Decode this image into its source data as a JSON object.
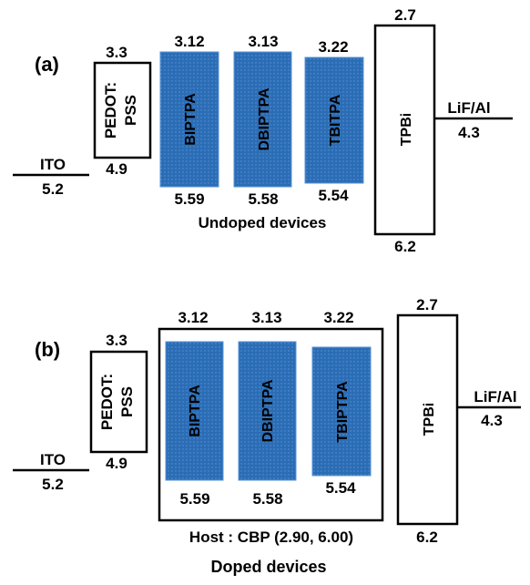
{
  "colors": {
    "layer_fill": "#2b6db5",
    "layer_dots": "#5a93d6",
    "outline": "#000000"
  },
  "panel_a": {
    "label": "(a)",
    "caption": "Undoped devices",
    "ito": {
      "name": "ITO",
      "value": "5.2"
    },
    "pedot": {
      "name_line1": "PEDOT:",
      "name_line2": "PSS",
      "lumo": "3.3",
      "homo": "4.9"
    },
    "bip": {
      "name": "BIPTPA",
      "lumo": "3.12",
      "homo": "5.59"
    },
    "dbip": {
      "name": "DBIPTPA",
      "lumo": "3.13",
      "homo": "5.58"
    },
    "tbi": {
      "name": "TBITPA",
      "lumo": "3.22",
      "homo": "5.54"
    },
    "tpbi": {
      "name": "TPBi",
      "lumo": "2.7",
      "homo": "6.2"
    },
    "lif": {
      "name": "LiF/Al",
      "value": "4.3"
    }
  },
  "panel_b": {
    "label": "(b)",
    "caption": "Doped devices",
    "host": "Host : CBP (2.90, 6.00)",
    "ito": {
      "name": "ITO",
      "value": "5.2"
    },
    "pedot": {
      "name_line1": "PEDOT:",
      "name_line2": "PSS",
      "lumo": "3.3",
      "homo": "4.9"
    },
    "bip": {
      "name": "BIPTPA",
      "lumo": "3.12",
      "homo": "5.59"
    },
    "dbip": {
      "name": "DBIPTPA",
      "lumo": "3.13",
      "homo": "5.58"
    },
    "tbip": {
      "name": "TBIPTPA",
      "lumo": "3.22",
      "homo": "5.54"
    },
    "tpbi": {
      "name": "TPBi",
      "lumo": "2.7",
      "homo": "6.2"
    },
    "lif": {
      "name": "LiF/Al",
      "value": "4.3"
    }
  }
}
